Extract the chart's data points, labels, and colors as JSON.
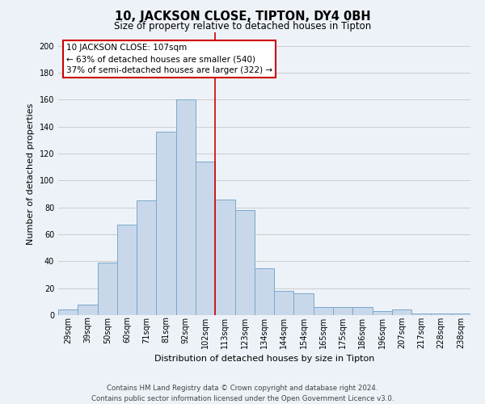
{
  "title": "10, JACKSON CLOSE, TIPTON, DY4 0BH",
  "subtitle": "Size of property relative to detached houses in Tipton",
  "xlabel": "Distribution of detached houses by size in Tipton",
  "ylabel": "Number of detached properties",
  "categories": [
    "29sqm",
    "39sqm",
    "50sqm",
    "60sqm",
    "71sqm",
    "81sqm",
    "92sqm",
    "102sqm",
    "113sqm",
    "123sqm",
    "134sqm",
    "144sqm",
    "154sqm",
    "165sqm",
    "175sqm",
    "186sqm",
    "196sqm",
    "207sqm",
    "217sqm",
    "228sqm",
    "238sqm"
  ],
  "values": [
    4,
    8,
    39,
    67,
    85,
    136,
    160,
    114,
    86,
    78,
    35,
    18,
    16,
    6,
    6,
    6,
    3,
    4,
    1,
    1,
    1
  ],
  "bar_color": "#c8d8ea",
  "bar_edge_color": "#7aa8cc",
  "vline_x_idx": 7,
  "vline_color": "#cc0000",
  "annotation_line1": "10 JACKSON CLOSE: 107sqm",
  "annotation_line2": "← 63% of detached houses are smaller (540)",
  "annotation_line3": "37% of semi-detached houses are larger (322) →",
  "annotation_box_color": "#ffffff",
  "annotation_box_edge": "#cc0000",
  "ylim": [
    0,
    210
  ],
  "yticks": [
    0,
    20,
    40,
    60,
    80,
    100,
    120,
    140,
    160,
    180,
    200
  ],
  "grid_color": "#cccccc",
  "background_color": "#edf2f8",
  "footer_line1": "Contains HM Land Registry data © Crown copyright and database right 2024.",
  "footer_line2": "Contains public sector information licensed under the Open Government Licence v3.0.",
  "title_fontsize": 10.5,
  "subtitle_fontsize": 8.5,
  "axis_label_fontsize": 8,
  "tick_fontsize": 7,
  "annotation_fontsize": 7.5,
  "footer_fontsize": 6.2
}
